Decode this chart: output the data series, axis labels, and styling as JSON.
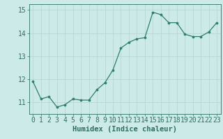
{
  "x": [
    0,
    1,
    2,
    3,
    4,
    5,
    6,
    7,
    8,
    9,
    10,
    11,
    12,
    13,
    14,
    15,
    16,
    17,
    18,
    19,
    20,
    21,
    22,
    23
  ],
  "y": [
    11.9,
    11.15,
    11.25,
    10.8,
    10.9,
    11.15,
    11.1,
    11.1,
    11.55,
    11.85,
    12.4,
    13.35,
    13.6,
    13.75,
    13.8,
    14.9,
    14.8,
    14.45,
    14.45,
    13.95,
    13.85,
    13.85,
    14.05,
    14.45
  ],
  "line_color": "#2e7d6e",
  "marker": "o",
  "marker_size": 2.2,
  "bg_color": "#cceae7",
  "grid_color": "#b8d8d4",
  "text_color": "#2e6e62",
  "xlabel": "Humidex (Indice chaleur)",
  "xlabel_fontsize": 7.5,
  "tick_fontsize": 7,
  "ylim": [
    10.5,
    15.25
  ],
  "yticks": [
    11,
    12,
    13,
    14,
    15
  ],
  "xlim": [
    -0.5,
    23.5
  ],
  "xticks": [
    0,
    1,
    2,
    3,
    4,
    5,
    6,
    7,
    8,
    9,
    10,
    11,
    12,
    13,
    14,
    15,
    16,
    17,
    18,
    19,
    20,
    21,
    22,
    23
  ]
}
